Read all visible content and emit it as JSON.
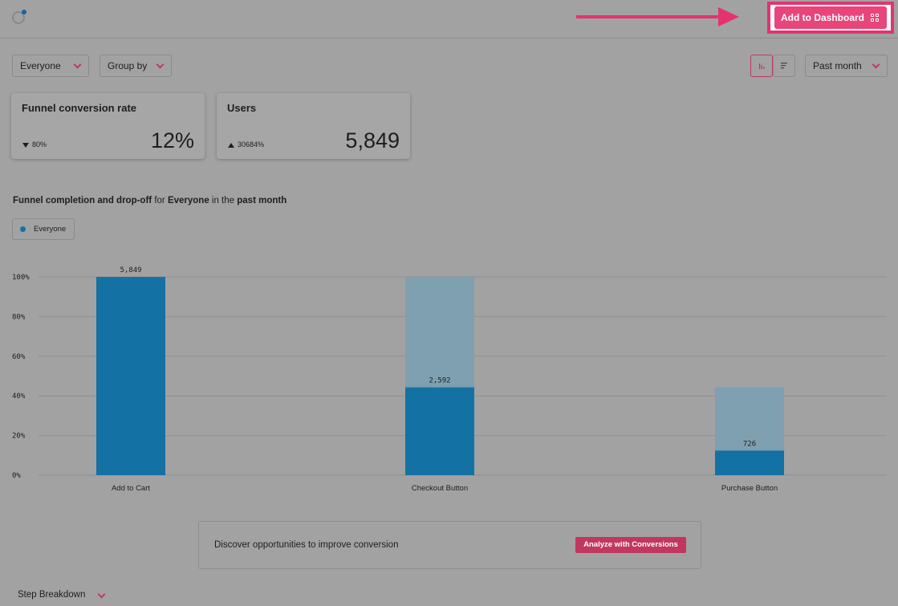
{
  "header": {
    "add_to_dashboard_label": "Add to Dashboard",
    "logo_icon": "logo-icon",
    "dashboard_icon": "grid-icon"
  },
  "filters": {
    "segment": "Everyone",
    "group_by": "Group by",
    "time_range": "Past month"
  },
  "view_toggle": {
    "icons": [
      "bar-chart-icon",
      "list-icon"
    ],
    "active": "bar-chart-icon"
  },
  "cards": [
    {
      "title": "Funnel conversion rate",
      "delta": "80%",
      "delta_direction": "down",
      "value": "12%"
    },
    {
      "title": "Users",
      "delta": "30684%",
      "delta_direction": "up",
      "value": "5,849"
    }
  ],
  "chart_heading": {
    "part1": "Funnel completion and drop-off",
    "part2": " for ",
    "part3": "Everyone",
    "part4": " in the ",
    "part5": "past month"
  },
  "legend": {
    "label": "Everyone"
  },
  "colors": {
    "accent": "#e8457a",
    "bar": "#1471a3",
    "bar_dropoff": "#7fa0b0"
  },
  "chart_data": {
    "type": "bar",
    "categories": [
      "Add to Cart",
      "Checkout Button",
      "Purchase Button"
    ],
    "series": [
      {
        "name": "Everyone",
        "values": [
          100,
          44.3,
          12.4
        ]
      }
    ],
    "dropoff_top": [
      100,
      100,
      44.3
    ],
    "data_labels": [
      "5,849",
      "2,592",
      "726"
    ],
    "y_ticks": [
      "0%",
      "20%",
      "40%",
      "60%",
      "80%",
      "100%"
    ],
    "ylim": [
      0,
      100
    ],
    "grid": true
  },
  "discover": {
    "text": "Discover opportunities to improve conversion",
    "button": "Analyze with Conversions"
  },
  "step_breakdown": {
    "label": "Step Breakdown"
  }
}
